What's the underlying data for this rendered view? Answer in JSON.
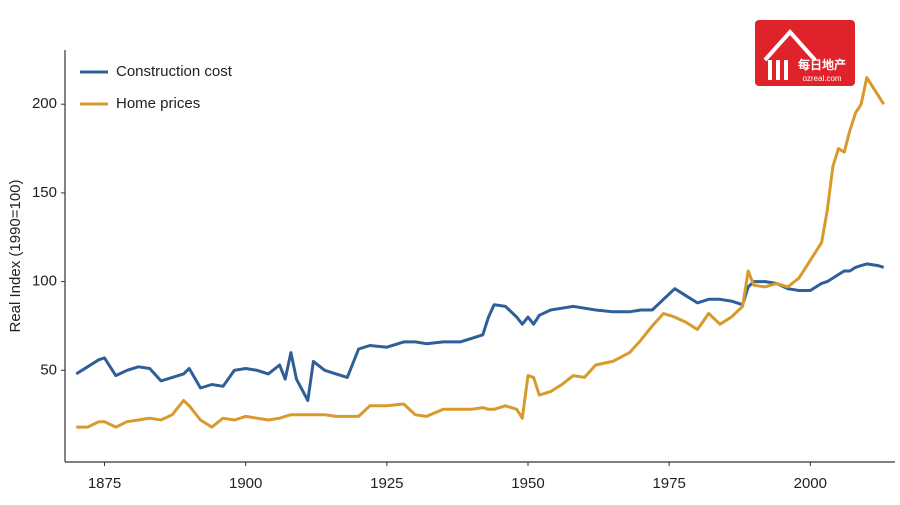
{
  "chart_data": {
    "type": "line",
    "y_label": "Real Index (1990=100)",
    "logo": {
      "text": "每日地产",
      "url": "ozreal.com"
    },
    "legend": "upper left",
    "grid": false,
    "xlim": [
      1868,
      2015
    ],
    "xticks": [
      1875,
      1900,
      1925,
      1950,
      1975,
      2000
    ],
    "ylim": [
      0,
      230
    ],
    "yticks": [
      50,
      100,
      150,
      200
    ],
    "x": [
      1870,
      1872,
      1874,
      1875,
      1877,
      1879,
      1881,
      1883,
      1885,
      1887,
      1889,
      1890,
      1892,
      1894,
      1896,
      1898,
      1900,
      1902,
      1904,
      1906,
      1907,
      1908,
      1909,
      1911,
      1912,
      1914,
      1916,
      1918,
      1920,
      1922,
      1925,
      1928,
      1930,
      1932,
      1935,
      1938,
      1940,
      1942,
      1943,
      1944,
      1946,
      1948,
      1949,
      1950,
      1951,
      1952,
      1954,
      1956,
      1958,
      1960,
      1962,
      1965,
      1968,
      1970,
      1972,
      1974,
      1976,
      1978,
      1980,
      1982,
      1984,
      1986,
      1988,
      1989,
      1990,
      1992,
      1994,
      1996,
      1998,
      2000,
      2002,
      2003,
      2004,
      2005,
      2006,
      2007,
      2008,
      2009,
      2010,
      2012,
      2013
    ],
    "series": [
      {
        "name": "Construction cost",
        "color": "#2f5f98",
        "values": [
          48,
          52,
          56,
          57,
          47,
          50,
          52,
          51,
          44,
          46,
          48,
          51,
          40,
          42,
          41,
          50,
          51,
          50,
          48,
          53,
          45,
          60,
          45,
          33,
          55,
          50,
          48,
          46,
          62,
          64,
          63,
          66,
          66,
          65,
          66,
          66,
          68,
          70,
          80,
          87,
          86,
          80,
          76,
          80,
          76,
          81,
          84,
          85,
          86,
          85,
          84,
          83,
          83,
          84,
          84,
          90,
          96,
          92,
          88,
          90,
          90,
          89,
          87,
          97,
          100,
          100,
          99,
          96,
          95,
          95,
          99,
          100,
          102,
          104,
          106,
          106,
          108,
          109,
          110,
          109,
          108
        ]
      },
      {
        "name": "Home prices",
        "color": "#d79a2b",
        "values": [
          18,
          18,
          21,
          21,
          18,
          21,
          22,
          23,
          22,
          25,
          33,
          30,
          22,
          18,
          23,
          22,
          24,
          23,
          22,
          23,
          24,
          25,
          25,
          25,
          25,
          25,
          24,
          24,
          24,
          30,
          30,
          31,
          25,
          24,
          28,
          28,
          28,
          29,
          28,
          28,
          30,
          28,
          23,
          47,
          46,
          36,
          38,
          42,
          47,
          46,
          53,
          55,
          60,
          67,
          75,
          82,
          80,
          77,
          73,
          82,
          76,
          80,
          86,
          106,
          98,
          97,
          99,
          97,
          102,
          112,
          122,
          140,
          165,
          175,
          173,
          185,
          195,
          200,
          215,
          205,
          200
        ]
      }
    ]
  }
}
